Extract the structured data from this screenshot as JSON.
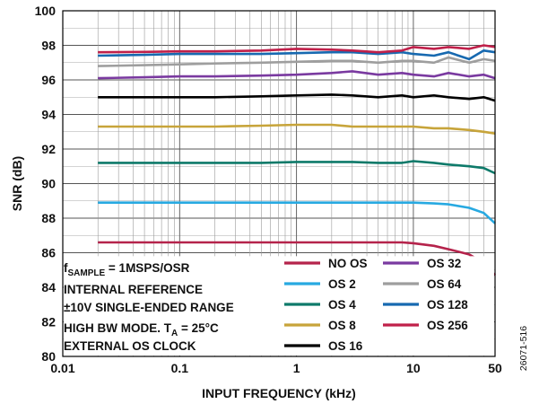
{
  "chart_data": {
    "type": "line",
    "xscale": "log",
    "xlim": [
      0.01,
      50
    ],
    "ylim": [
      80,
      100
    ],
    "grid": true,
    "xlabel": "INPUT FREQUENCY (kHz)",
    "ylabel": "SNR (dB)",
    "xticks": [
      "0.01",
      "0.1",
      "1",
      "10",
      "50"
    ],
    "yticks": [
      "80",
      "82",
      "84",
      "86",
      "88",
      "90",
      "92",
      "94",
      "96",
      "98",
      "100"
    ],
    "x": [
      0.02,
      0.05,
      0.1,
      0.2,
      0.5,
      1,
      2,
      3,
      5,
      8,
      10,
      15,
      20,
      30,
      40,
      50
    ],
    "series": [
      {
        "name": "NO OS",
        "color": "#b5234b",
        "values": [
          86.6,
          86.6,
          86.6,
          86.6,
          86.6,
          86.6,
          86.6,
          86.6,
          86.6,
          86.6,
          86.55,
          86.4,
          86.2,
          85.9,
          85.4,
          84.7
        ]
      },
      {
        "name": "OS 2",
        "color": "#27a9e1",
        "values": [
          88.9,
          88.9,
          88.9,
          88.9,
          88.9,
          88.9,
          88.9,
          88.9,
          88.9,
          88.9,
          88.9,
          88.85,
          88.8,
          88.6,
          88.3,
          87.7
        ]
      },
      {
        "name": "OS 4",
        "color": "#0e7a6a",
        "values": [
          91.2,
          91.2,
          91.2,
          91.2,
          91.2,
          91.25,
          91.25,
          91.25,
          91.2,
          91.2,
          91.3,
          91.2,
          91.1,
          91.0,
          90.9,
          90.6
        ]
      },
      {
        "name": "OS 8",
        "color": "#c7a43a",
        "values": [
          93.3,
          93.3,
          93.3,
          93.3,
          93.35,
          93.4,
          93.4,
          93.3,
          93.3,
          93.3,
          93.3,
          93.2,
          93.2,
          93.1,
          93.0,
          92.9
        ]
      },
      {
        "name": "OS 16",
        "color": "#000000",
        "values": [
          95.0,
          95.0,
          95.0,
          95.0,
          95.05,
          95.1,
          95.15,
          95.1,
          95.0,
          95.1,
          95.0,
          95.1,
          95.0,
          94.9,
          95.0,
          94.8
        ]
      },
      {
        "name": "OS 32",
        "color": "#7a3aa0",
        "values": [
          96.1,
          96.15,
          96.2,
          96.2,
          96.25,
          96.3,
          96.4,
          96.5,
          96.3,
          96.4,
          96.3,
          96.2,
          96.4,
          96.2,
          96.3,
          96.1
        ]
      },
      {
        "name": "OS 64",
        "color": "#9e9e9e",
        "values": [
          96.8,
          96.85,
          96.9,
          96.95,
          97.0,
          97.05,
          97.1,
          97.1,
          97.0,
          97.1,
          97.1,
          97.0,
          97.3,
          97.0,
          97.2,
          97.1
        ]
      },
      {
        "name": "OS 128",
        "color": "#1769b0",
        "values": [
          97.4,
          97.45,
          97.5,
          97.5,
          97.5,
          97.55,
          97.6,
          97.6,
          97.5,
          97.6,
          97.5,
          97.4,
          97.6,
          97.2,
          97.7,
          97.6
        ]
      },
      {
        "name": "OS 256",
        "color": "#c0204a",
        "values": [
          97.6,
          97.62,
          97.65,
          97.65,
          97.7,
          97.8,
          97.75,
          97.7,
          97.6,
          97.7,
          97.9,
          97.8,
          97.9,
          97.8,
          98.0,
          97.9
        ]
      }
    ],
    "legend_placement": "bottom-center"
  },
  "notes": {
    "line1_prefix": "f",
    "line1_sub": "SAMPLE",
    "line1_rest": " = 1MSPS/OSR",
    "line2": "INTERNAL REFERENCE",
    "line3": "±10V SINGLE-ENDED RANGE",
    "line4_prefix": "HIGH BW MODE. T",
    "line4_sub": "A",
    "line4_rest": " = 25°C",
    "line5": "EXTERNAL OS CLOCK"
  },
  "figure_id": "26071-516"
}
